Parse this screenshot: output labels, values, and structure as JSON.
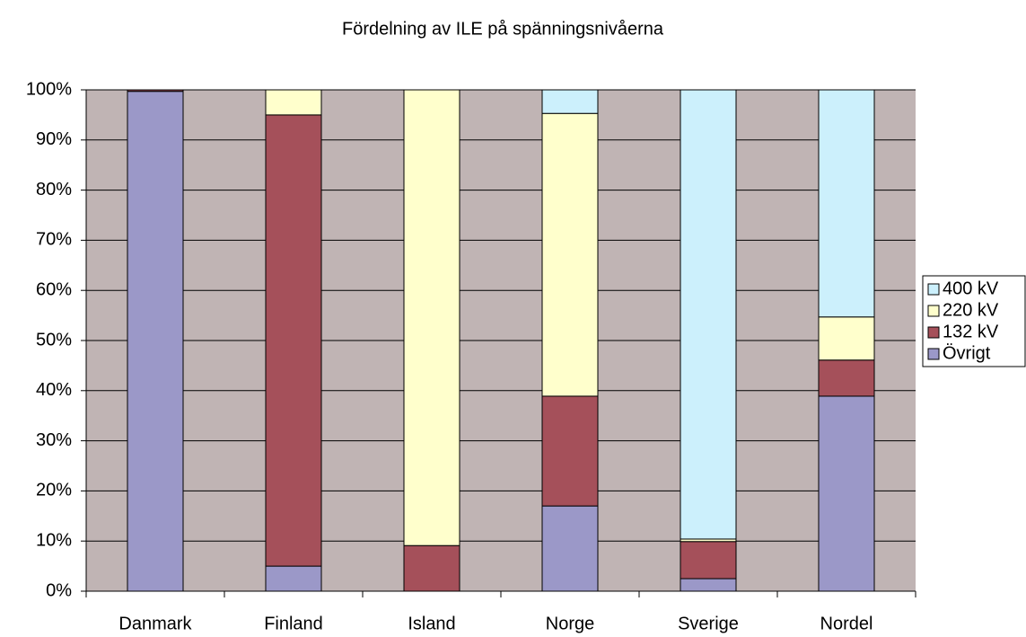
{
  "chart_data": {
    "type": "stacked_bar",
    "title": "Fördelning av ILE på spänningsnivåerna",
    "categories": [
      "Danmark",
      "Finland",
      "Island",
      "Norge",
      "Sverige",
      "Nordel"
    ],
    "series": [
      {
        "name": "Övrigt",
        "color": "#9b98c8",
        "values": [
          99.7,
          5,
          0,
          17,
          2.5,
          38.9
        ]
      },
      {
        "name": "132 kV",
        "color": "#a5505a",
        "values": [
          0.3,
          90,
          9.1,
          21.9,
          7.4,
          7.2
        ]
      },
      {
        "name": "220 kV",
        "color": "#ffffcc",
        "values": [
          0,
          5,
          90.9,
          56.4,
          0.5,
          8.6
        ]
      },
      {
        "name": "400 kV",
        "color": "#ccf0fc",
        "values": [
          0,
          0,
          0,
          4.7,
          89.6,
          45.3
        ]
      }
    ],
    "ylim": [
      0,
      100
    ],
    "yticks": [
      {
        "value": 0,
        "label": "0%"
      },
      {
        "value": 10,
        "label": "10%"
      },
      {
        "value": 20,
        "label": "20%"
      },
      {
        "value": 30,
        "label": "30%"
      },
      {
        "value": 40,
        "label": "40%"
      },
      {
        "value": 50,
        "label": "50%"
      },
      {
        "value": 60,
        "label": "60%"
      },
      {
        "value": 70,
        "label": "70%"
      },
      {
        "value": 80,
        "label": "80%"
      },
      {
        "value": 90,
        "label": "90%"
      },
      {
        "value": 100,
        "label": "100%"
      }
    ],
    "grid": true,
    "legend": "right"
  }
}
